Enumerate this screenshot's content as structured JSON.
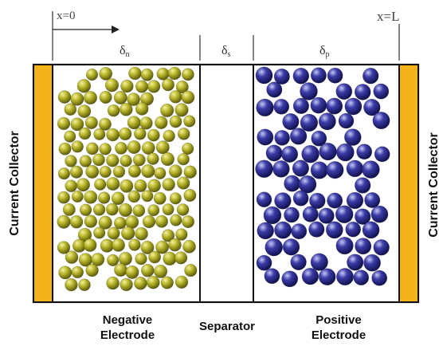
{
  "markers": {
    "x_start": "x=0",
    "x_end": "x=L"
  },
  "regions": {
    "negative_thickness": "δ",
    "negative_thickness_sub": "n",
    "separator_thickness": "δ",
    "separator_thickness_sub": "s",
    "positive_thickness": "δ",
    "positive_thickness_sub": "p"
  },
  "labels": {
    "current_collector_left": "Current Collector",
    "current_collector_right": "Current Collector",
    "negative_line1": "Negative",
    "negative_line2": "Electrode",
    "separator": "Separator",
    "positive_line1": "Positive",
    "positive_line2": "Electrode"
  },
  "colors": {
    "collector": "#f2b21a",
    "negative_particle": "#a3a320",
    "positive_particle": "#2e2f8f",
    "outline": "#111111"
  }
}
